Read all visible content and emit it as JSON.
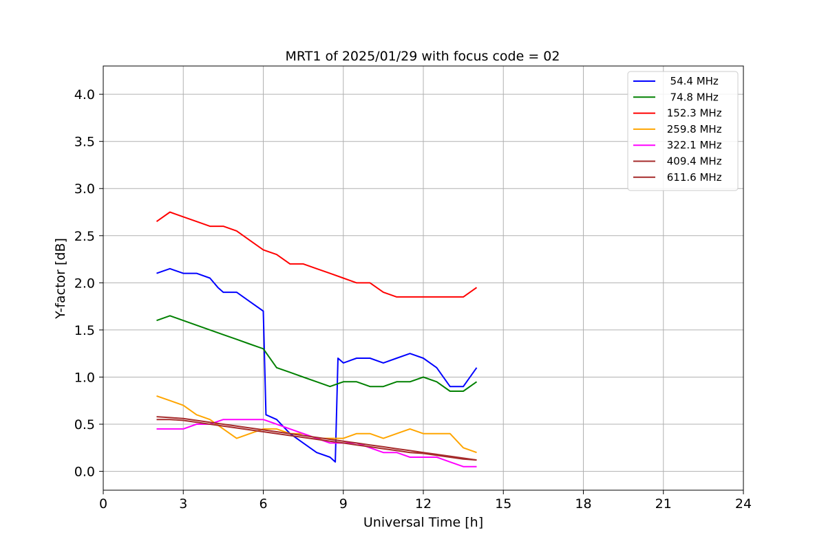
{
  "chart_data": {
    "type": "line",
    "title": "MRT1 of 2025/01/29 with focus code = 02",
    "xlabel": "Universal Time [h]",
    "ylabel": "Y-factor [dB]",
    "xlim": [
      0,
      24
    ],
    "ylim": [
      -0.2,
      4.3
    ],
    "xticks": [
      0,
      3,
      6,
      9,
      12,
      15,
      18,
      21,
      24
    ],
    "yticks": [
      0.0,
      0.5,
      1.0,
      1.5,
      2.0,
      2.5,
      3.0,
      3.5,
      4.0
    ],
    "xtick_labels": [
      "0",
      "3",
      "6",
      "9",
      "12",
      "15",
      "18",
      "21",
      "24"
    ],
    "ytick_labels": [
      "0.0",
      "0.5",
      "1.0",
      "1.5",
      "2.0",
      "2.5",
      "3.0",
      "3.5",
      "4.0"
    ],
    "grid": true,
    "legend_position": "top-right",
    "series": [
      {
        "name": "  54.4 MHz",
        "color": "#0000ff",
        "x": [
          2.0,
          2.5,
          3.0,
          3.5,
          4.0,
          4.3,
          4.5,
          5.0,
          5.5,
          6.0,
          6.1,
          6.5,
          7.0,
          7.5,
          8.0,
          8.5,
          8.7,
          8.8,
          9.0,
          9.5,
          10.0,
          10.5,
          11.0,
          11.5,
          12.0,
          12.5,
          13.0,
          13.5,
          14.0
        ],
        "y": [
          2.1,
          2.15,
          2.1,
          2.1,
          2.05,
          1.95,
          1.9,
          1.9,
          1.8,
          1.7,
          0.6,
          0.55,
          0.4,
          0.3,
          0.2,
          0.15,
          0.1,
          1.2,
          1.15,
          1.2,
          1.2,
          1.15,
          1.2,
          1.25,
          1.2,
          1.1,
          0.9,
          0.9,
          1.1
        ]
      },
      {
        "name": "  74.8 MHz",
        "color": "#008000",
        "x": [
          2.0,
          2.5,
          3.0,
          3.5,
          4.0,
          4.5,
          5.0,
          5.5,
          6.0,
          6.5,
          7.0,
          7.5,
          8.0,
          8.5,
          9.0,
          9.5,
          10.0,
          10.5,
          11.0,
          11.5,
          12.0,
          12.5,
          13.0,
          13.5,
          14.0
        ],
        "y": [
          1.6,
          1.65,
          1.6,
          1.55,
          1.5,
          1.45,
          1.4,
          1.35,
          1.3,
          1.1,
          1.05,
          1.0,
          0.95,
          0.9,
          0.95,
          0.95,
          0.9,
          0.9,
          0.95,
          0.95,
          1.0,
          0.95,
          0.85,
          0.85,
          0.95
        ]
      },
      {
        "name": " 152.3 MHz",
        "color": "#ff0000",
        "x": [
          2.0,
          2.5,
          3.0,
          3.5,
          4.0,
          4.5,
          5.0,
          5.5,
          6.0,
          6.5,
          7.0,
          7.5,
          8.0,
          8.5,
          9.0,
          9.5,
          10.0,
          10.5,
          11.0,
          11.5,
          12.0,
          12.5,
          13.0,
          13.5,
          14.0
        ],
        "y": [
          2.65,
          2.75,
          2.7,
          2.65,
          2.6,
          2.6,
          2.55,
          2.45,
          2.35,
          2.3,
          2.2,
          2.2,
          2.15,
          2.1,
          2.05,
          2.0,
          2.0,
          1.9,
          1.85,
          1.85,
          1.85,
          1.85,
          1.85,
          1.85,
          1.95
        ]
      },
      {
        "name": " 259.8 MHz",
        "color": "#ffa500",
        "x": [
          2.0,
          2.5,
          3.0,
          3.5,
          4.0,
          4.5,
          5.0,
          5.5,
          6.0,
          6.5,
          7.0,
          7.5,
          8.0,
          8.5,
          9.0,
          9.5,
          10.0,
          10.5,
          11.0,
          11.5,
          12.0,
          12.5,
          13.0,
          13.5,
          14.0
        ],
        "y": [
          0.8,
          0.75,
          0.7,
          0.6,
          0.55,
          0.45,
          0.35,
          0.4,
          0.45,
          0.45,
          0.4,
          0.4,
          0.35,
          0.35,
          0.35,
          0.4,
          0.4,
          0.35,
          0.4,
          0.45,
          0.4,
          0.4,
          0.4,
          0.25,
          0.2
        ]
      },
      {
        "name": " 322.1 MHz",
        "color": "#ff00ff",
        "x": [
          2.0,
          2.5,
          3.0,
          3.5,
          4.0,
          4.5,
          5.0,
          5.5,
          6.0,
          6.5,
          7.0,
          7.5,
          8.0,
          8.5,
          9.0,
          9.5,
          10.0,
          10.5,
          11.0,
          11.5,
          12.0,
          12.5,
          13.0,
          13.5,
          14.0
        ],
        "y": [
          0.45,
          0.45,
          0.45,
          0.5,
          0.5,
          0.55,
          0.55,
          0.55,
          0.55,
          0.5,
          0.45,
          0.4,
          0.35,
          0.3,
          0.3,
          0.3,
          0.25,
          0.2,
          0.2,
          0.15,
          0.15,
          0.15,
          0.1,
          0.05,
          0.05
        ]
      },
      {
        "name": " 409.4 MHz",
        "color": "#a52a2a",
        "x": [
          2.0,
          2.5,
          3.0,
          3.5,
          4.0,
          4.5,
          5.0,
          5.5,
          6.0,
          6.5,
          7.0,
          7.5,
          8.0,
          8.5,
          9.0,
          9.5,
          10.0,
          10.5,
          11.0,
          11.5,
          12.0,
          12.5,
          13.0,
          13.5,
          14.0
        ],
        "y": [
          0.58,
          0.57,
          0.56,
          0.54,
          0.52,
          0.5,
          0.48,
          0.46,
          0.44,
          0.42,
          0.4,
          0.38,
          0.36,
          0.34,
          0.32,
          0.3,
          0.28,
          0.26,
          0.24,
          0.22,
          0.2,
          0.18,
          0.16,
          0.14,
          0.12
        ]
      },
      {
        "name": " 611.6 MHz",
        "color": "#a52a2a",
        "x": [
          2.0,
          2.5,
          3.0,
          3.5,
          4.0,
          4.5,
          5.0,
          5.5,
          6.0,
          6.5,
          7.0,
          7.5,
          8.0,
          8.5,
          9.0,
          9.5,
          10.0,
          10.5,
          11.0,
          11.5,
          12.0,
          12.5,
          13.0,
          13.5,
          14.0
        ],
        "y": [
          0.55,
          0.55,
          0.54,
          0.52,
          0.5,
          0.48,
          0.46,
          0.44,
          0.42,
          0.4,
          0.38,
          0.36,
          0.34,
          0.32,
          0.3,
          0.28,
          0.26,
          0.24,
          0.22,
          0.2,
          0.19,
          0.17,
          0.15,
          0.13,
          0.12
        ]
      }
    ]
  }
}
